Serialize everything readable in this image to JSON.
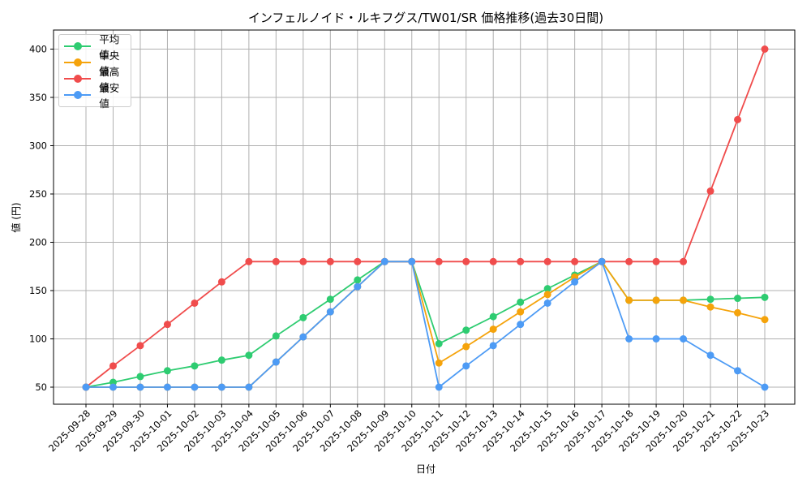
{
  "chart_data": {
    "type": "line",
    "title": "インフェルノイド・ルキフグス/TW01/SR 価格推移(過去30日間)",
    "xlabel": "日付",
    "ylabel": "値 (円)",
    "ylim": [
      33,
      418
    ],
    "yticks": [
      50,
      100,
      150,
      200,
      250,
      300,
      350,
      400
    ],
    "grid": true,
    "legend_position": "upper left",
    "categories": [
      "2025-09-28",
      "2025-09-29",
      "2025-09-30",
      "2025-10-01",
      "2025-10-02",
      "2025-10-03",
      "2025-10-04",
      "2025-10-05",
      "2025-10-06",
      "2025-10-07",
      "2025-10-08",
      "2025-10-09",
      "2025-10-10",
      "2025-10-11",
      "2025-10-12",
      "2025-10-13",
      "2025-10-14",
      "2025-10-15",
      "2025-10-16",
      "2025-10-17",
      "2025-10-18",
      "2025-10-19",
      "2025-10-20",
      "2025-10-21",
      "2025-10-22",
      "2025-10-23"
    ],
    "series": [
      {
        "name": "平均値",
        "color": "#2ecc71",
        "values": [
          50,
          55,
          61,
          67,
          72,
          78,
          83,
          103,
          122,
          141,
          161,
          180,
          180,
          95,
          109,
          123,
          138,
          152,
          166,
          180,
          140,
          140,
          140,
          141,
          142,
          143
        ]
      },
      {
        "name": "中央値",
        "color": "#f5a30b",
        "values": [
          50,
          50,
          50,
          50,
          50,
          50,
          50,
          76,
          102,
          128,
          154,
          180,
          180,
          75,
          92,
          110,
          128,
          146,
          164,
          180,
          140,
          140,
          140,
          133,
          127,
          120
        ]
      },
      {
        "name": "最高値",
        "color": "#f04c4c",
        "values": [
          50,
          72,
          93,
          115,
          137,
          159,
          180,
          180,
          180,
          180,
          180,
          180,
          180,
          180,
          180,
          180,
          180,
          180,
          180,
          180,
          180,
          180,
          180,
          253,
          327,
          400
        ]
      },
      {
        "name": "最安値",
        "color": "#4d9bf5",
        "values": [
          50,
          50,
          50,
          50,
          50,
          50,
          50,
          76,
          102,
          128,
          154,
          180,
          180,
          50,
          72,
          93,
          115,
          137,
          159,
          180,
          100,
          100,
          100,
          83,
          67,
          50
        ]
      }
    ]
  }
}
